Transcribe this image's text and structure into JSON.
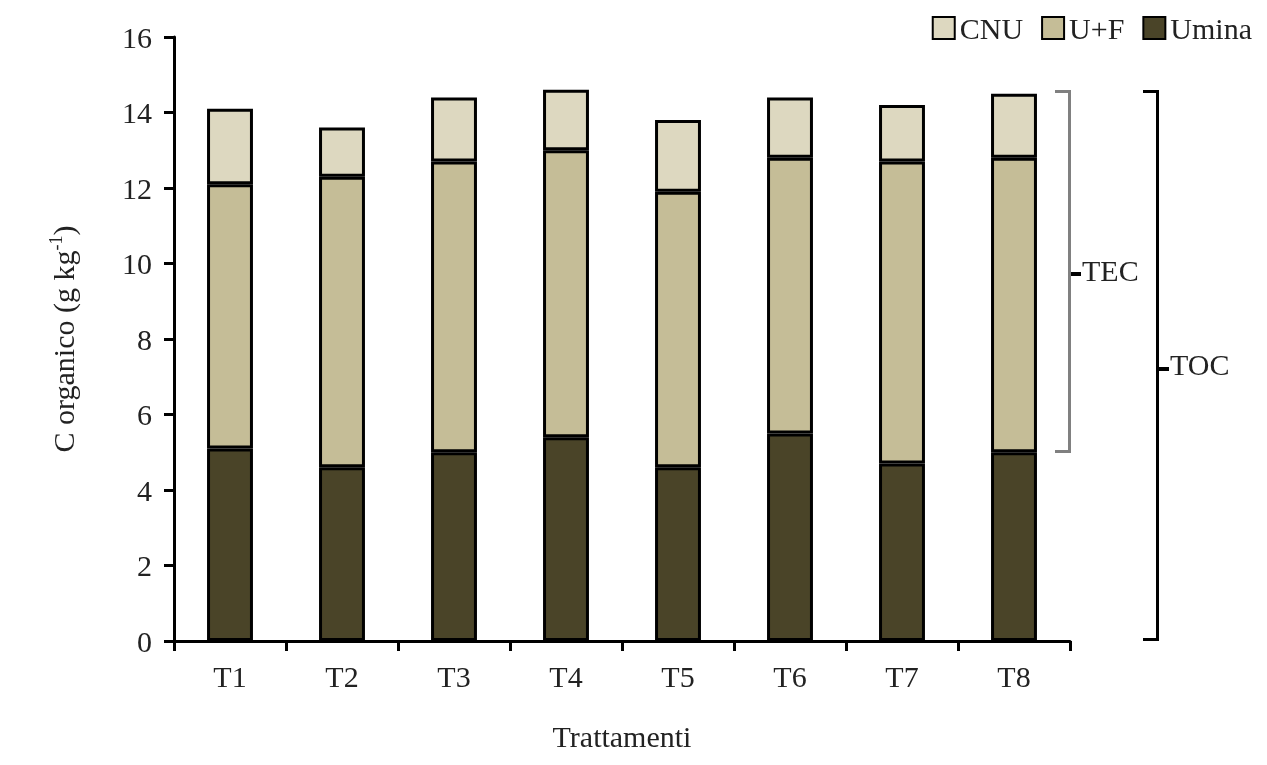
{
  "chart_data": {
    "type": "bar",
    "xlabel": "Trattamenti",
    "ylabel": "C organico (g kg$^{-1}$)",
    "categories": [
      "T1",
      "T2",
      "T3",
      "T4",
      "T5",
      "T6",
      "T7",
      "T8"
    ],
    "stacked": true,
    "series": [
      {
        "name": "Umina",
        "color": "#4a4428",
        "values": [
          5.1,
          4.6,
          5.0,
          5.4,
          4.6,
          5.5,
          4.7,
          5.0
        ]
      },
      {
        "name": "U+F",
        "color": "#c5bd97",
        "values": [
          7.0,
          7.7,
          7.7,
          7.6,
          7.3,
          7.3,
          8.0,
          7.8
        ]
      },
      {
        "name": "CNU",
        "color": "#ddd8c0",
        "values": [
          2.0,
          1.3,
          1.7,
          1.6,
          1.9,
          1.6,
          1.5,
          1.7
        ]
      }
    ],
    "ylim": [
      0,
      16
    ],
    "yticks": [
      0,
      2,
      4,
      6,
      8,
      10,
      12,
      14,
      16
    ],
    "grid": false,
    "legend": "top right",
    "annotations": [
      "TEC",
      "TOC"
    ]
  }
}
